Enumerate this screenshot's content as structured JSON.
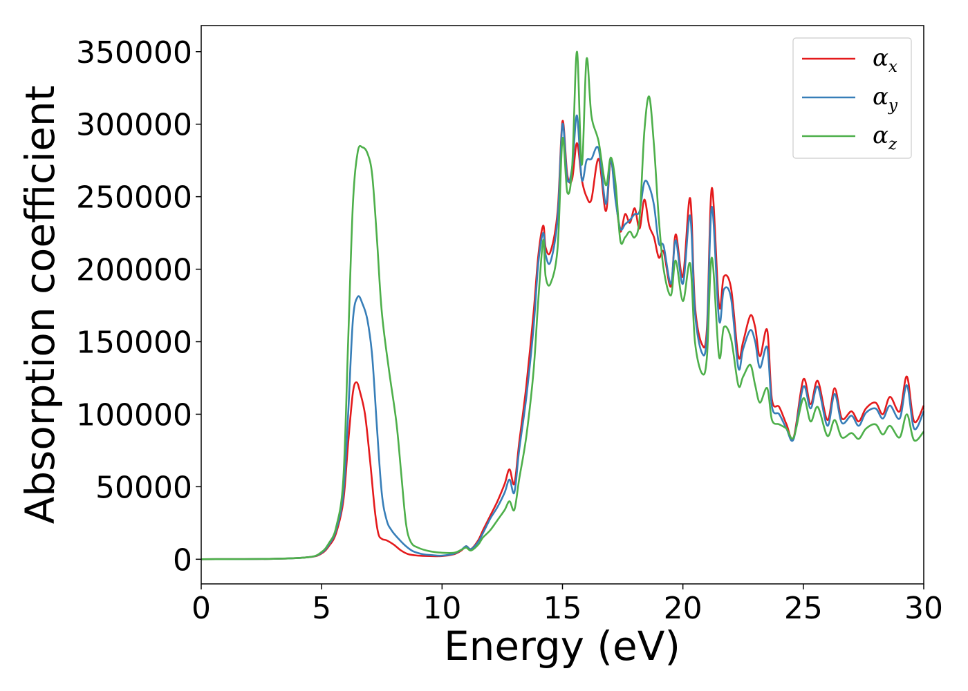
{
  "chart_data": {
    "type": "line",
    "xlabel": "Energy (eV)",
    "ylabel": "Absorption coefficient",
    "xlim": [
      0,
      30
    ],
    "ylim": [
      -17000,
      368000
    ],
    "xticks": [
      0,
      5,
      10,
      15,
      20,
      25,
      30
    ],
    "xtick_labels": [
      "0",
      "5",
      "10",
      "15",
      "20",
      "25",
      "30"
    ],
    "yticks": [
      0,
      50000,
      100000,
      150000,
      200000,
      250000,
      300000,
      350000
    ],
    "ytick_labels": [
      "0",
      "50000",
      "100000",
      "150000",
      "200000",
      "250000",
      "300000",
      "350000"
    ],
    "grid": false,
    "legend_position": "top-right",
    "series": [
      {
        "name": "α",
        "subscript": "x",
        "color": "#e41a1c",
        "x": [
          0,
          3,
          4.5,
          5,
          5.3,
          5.6,
          5.9,
          6.1,
          6.3,
          6.45,
          6.6,
          6.8,
          7.0,
          7.2,
          7.35,
          7.5,
          7.7,
          8.0,
          8.3,
          8.6,
          9,
          9.5,
          10,
          10.5,
          10.8,
          11,
          11.2,
          11.5,
          11.7,
          12,
          12.3,
          12.6,
          12.8,
          13,
          13.2,
          13.5,
          13.8,
          14,
          14.2,
          14.3,
          14.5,
          14.8,
          15.0,
          15.2,
          15.4,
          15.6,
          15.8,
          16,
          16.2,
          16.5,
          16.8,
          17,
          17.2,
          17.4,
          17.6,
          17.8,
          18.0,
          18.2,
          18.4,
          18.6,
          18.8,
          19.0,
          19.2,
          19.5,
          19.7,
          20.0,
          20.3,
          20.5,
          20.8,
          21.0,
          21.2,
          21.5,
          21.7,
          22.0,
          22.3,
          22.5,
          22.8,
          23.0,
          23.2,
          23.5,
          23.7,
          24.0,
          24.3,
          24.6,
          25.0,
          25.3,
          25.6,
          26.0,
          26.3,
          26.6,
          27.0,
          27.3,
          27.6,
          28.0,
          28.3,
          28.6,
          29.0,
          29.3,
          29.6,
          30.0
        ],
        "values": [
          0,
          300,
          1500,
          4000,
          9000,
          18000,
          40000,
          80000,
          115000,
          122000,
          115000,
          100000,
          70000,
          35000,
          18000,
          14000,
          13000,
          10000,
          6000,
          3500,
          2500,
          2200,
          2200,
          3500,
          6000,
          9000,
          7000,
          13000,
          20000,
          30000,
          40000,
          52000,
          62000,
          52000,
          80000,
          120000,
          170000,
          210000,
          230000,
          215000,
          212000,
          240000,
          302000,
          265000,
          262000,
          287000,
          262000,
          250000,
          248000,
          276000,
          240000,
          275000,
          250000,
          226000,
          238000,
          232000,
          242000,
          228000,
          248000,
          230000,
          222000,
          208000,
          212000,
          188000,
          224000,
          195000,
          249000,
          175000,
          148000,
          160000,
          256000,
          175000,
          195000,
          187000,
          140000,
          150000,
          168000,
          160000,
          140000,
          158000,
          110000,
          105000,
          93000,
          84000,
          124000,
          107000,
          123000,
          96000,
          118000,
          97000,
          102000,
          95000,
          104000,
          108000,
          100000,
          112000,
          102000,
          126000,
          95000,
          106000
        ]
      },
      {
        "name": "α",
        "subscript": "y",
        "color": "#377eb8",
        "x": [
          0,
          3,
          4.5,
          5,
          5.3,
          5.6,
          5.9,
          6.1,
          6.3,
          6.5,
          6.7,
          6.9,
          7.1,
          7.3,
          7.5,
          7.7,
          7.9,
          8.2,
          8.5,
          8.8,
          9.2,
          9.6,
          10,
          10.5,
          10.8,
          11,
          11.2,
          11.5,
          11.7,
          12,
          12.3,
          12.6,
          12.8,
          13,
          13.2,
          13.5,
          13.8,
          14,
          14.2,
          14.3,
          14.5,
          14.8,
          15.0,
          15.2,
          15.4,
          15.6,
          15.8,
          16,
          16.2,
          16.5,
          16.8,
          17,
          17.2,
          17.4,
          17.6,
          17.8,
          18.0,
          18.2,
          18.4,
          18.6,
          18.8,
          19.0,
          19.2,
          19.5,
          19.7,
          20.0,
          20.3,
          20.5,
          20.8,
          21.0,
          21.2,
          21.5,
          21.7,
          22.0,
          22.3,
          22.5,
          22.8,
          23.0,
          23.2,
          23.5,
          23.7,
          24.0,
          24.3,
          24.6,
          25.0,
          25.3,
          25.6,
          26.0,
          26.3,
          26.6,
          27.0,
          27.3,
          27.6,
          28.0,
          28.3,
          28.6,
          29.0,
          29.3,
          29.6,
          30.0
        ],
        "values": [
          0,
          300,
          1500,
          4500,
          10000,
          20000,
          45000,
          100000,
          165000,
          181000,
          176000,
          165000,
          140000,
          90000,
          45000,
          27000,
          20000,
          14000,
          9000,
          5500,
          3500,
          2800,
          2500,
          3800,
          6500,
          9000,
          7000,
          12000,
          18000,
          28000,
          36000,
          46000,
          55000,
          46000,
          75000,
          112000,
          160000,
          205000,
          225000,
          210000,
          205000,
          235000,
          300000,
          262000,
          270000,
          306000,
          262000,
          275000,
          276000,
          283000,
          245000,
          276000,
          248000,
          228000,
          231000,
          234000,
          238000,
          240000,
          260000,
          257000,
          244000,
          218000,
          216000,
          190000,
          220000,
          190000,
          237000,
          170000,
          142000,
          155000,
          243000,
          165000,
          186000,
          180000,
          132000,
          145000,
          158000,
          150000,
          132000,
          146000,
          105000,
          100000,
          90000,
          83000,
          119000,
          104000,
          119000,
          92000,
          114000,
          94000,
          99000,
          92000,
          101000,
          104000,
          97000,
          106000,
          97000,
          120000,
          90000,
          102000
        ]
      },
      {
        "name": "α",
        "subscript": "z",
        "color": "#4daf4a",
        "x": [
          0,
          3,
          4.5,
          5,
          5.3,
          5.6,
          5.9,
          6.1,
          6.3,
          6.5,
          6.7,
          6.9,
          7.1,
          7.3,
          7.5,
          7.8,
          8.1,
          8.3,
          8.5,
          8.7,
          9,
          9.5,
          10,
          10.5,
          10.8,
          11,
          11.2,
          11.5,
          11.7,
          12,
          12.3,
          12.6,
          12.8,
          13,
          13.2,
          13.5,
          13.8,
          14,
          14.2,
          14.3,
          14.5,
          14.8,
          15.0,
          15.2,
          15.4,
          15.6,
          15.8,
          16,
          16.2,
          16.5,
          16.8,
          17,
          17.2,
          17.4,
          17.6,
          17.8,
          18.0,
          18.2,
          18.4,
          18.6,
          18.8,
          19.0,
          19.2,
          19.5,
          19.7,
          20.0,
          20.3,
          20.5,
          20.8,
          21.0,
          21.2,
          21.5,
          21.7,
          22.0,
          22.3,
          22.5,
          22.8,
          23.0,
          23.2,
          23.5,
          23.7,
          24.0,
          24.3,
          24.6,
          25.0,
          25.3,
          25.6,
          26.0,
          26.3,
          26.6,
          27.0,
          27.3,
          27.6,
          28.0,
          28.3,
          28.6,
          29.0,
          29.3,
          29.6,
          30.0
        ],
        "values": [
          0,
          300,
          1500,
          5000,
          11000,
          22000,
          55000,
          150000,
          245000,
          281000,
          284000,
          280000,
          265000,
          220000,
          170000,
          130000,
          95000,
          60000,
          25000,
          12000,
          8000,
          5500,
          4500,
          4500,
          6500,
          8000,
          6000,
          10000,
          15000,
          20000,
          27000,
          34000,
          40000,
          34000,
          55000,
          85000,
          130000,
          180000,
          220000,
          195000,
          190000,
          215000,
          290000,
          253000,
          270000,
          350000,
          272000,
          345000,
          306000,
          288000,
          258000,
          277000,
          260000,
          220000,
          222000,
          226000,
          222000,
          235000,
          295000,
          319000,
          285000,
          235000,
          200000,
          182000,
          206000,
          178000,
          204000,
          150000,
          128000,
          140000,
          208000,
          140000,
          160000,
          152000,
          120000,
          126000,
          134000,
          120000,
          108000,
          118000,
          96000,
          93000,
          90000,
          84000,
          111000,
          95000,
          105000,
          85000,
          96000,
          84000,
          87000,
          83000,
          90000,
          93000,
          86000,
          92000,
          84000,
          100000,
          82000,
          88000
        ]
      }
    ]
  }
}
